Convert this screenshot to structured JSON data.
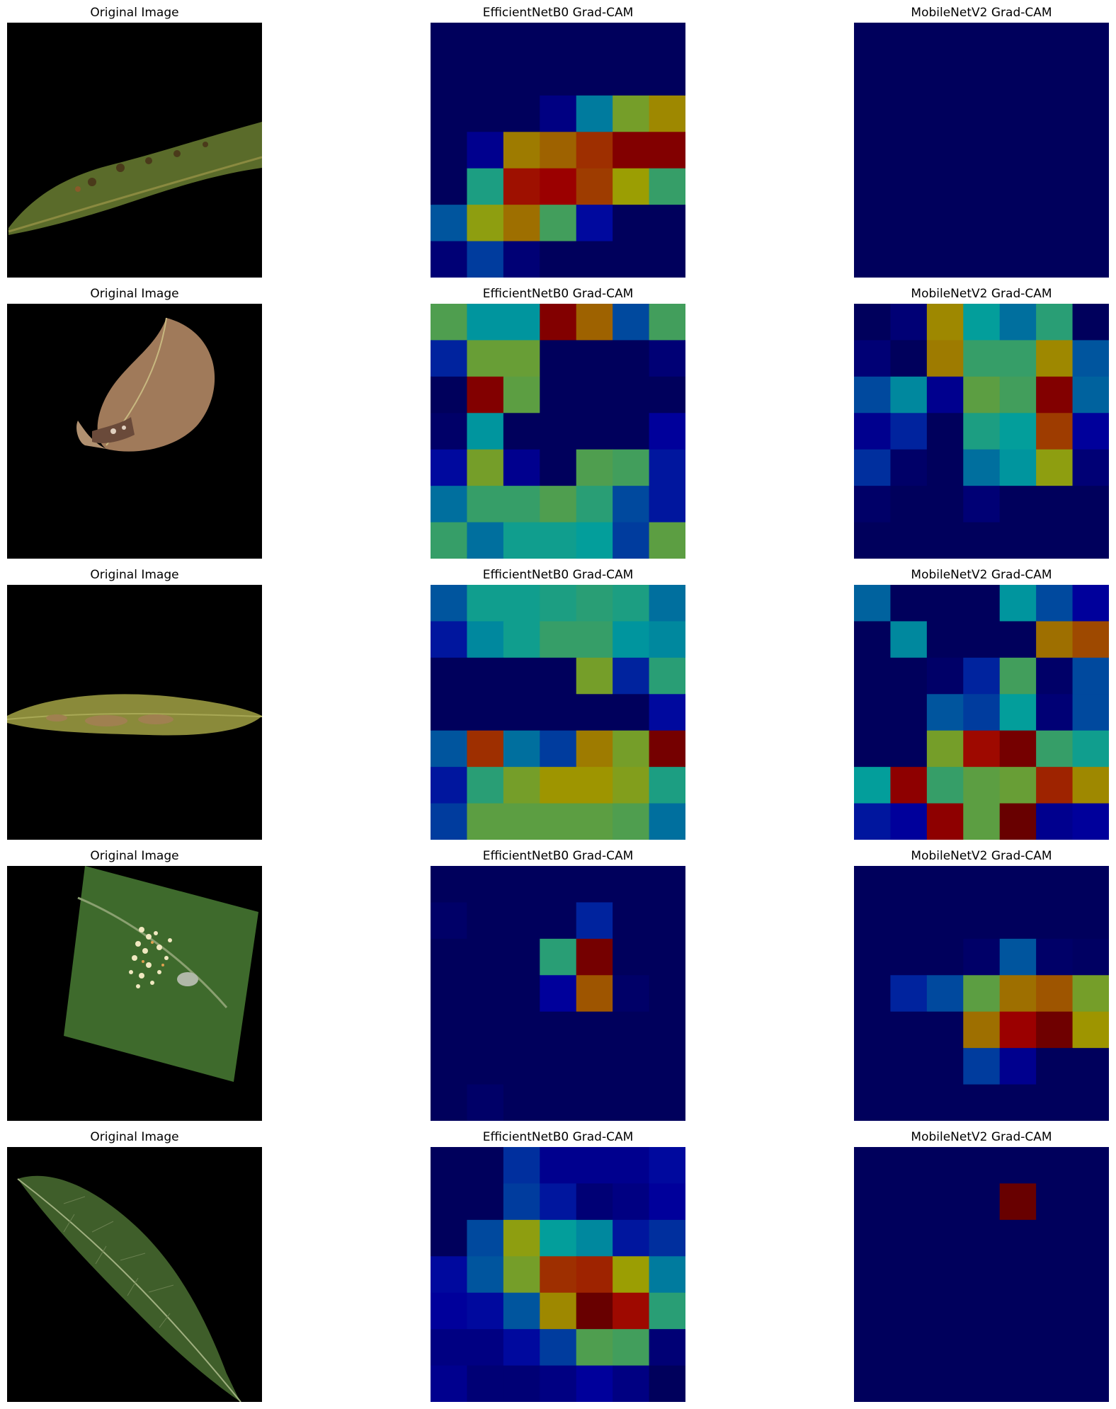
{
  "figure": {
    "rows": [
      {
        "original_title": "Original Image",
        "effnet_title": "EfficientNetB0 Grad-CAM",
        "mobilenet_title": "MobileNetV2 Grad-CAM",
        "effnet_grid": [
          [
            0.02,
            0.02,
            0.02,
            0.02,
            0.02,
            0.02,
            0.02
          ],
          [
            0.02,
            0.02,
            0.02,
            0.02,
            0.02,
            0.02,
            0.02
          ],
          [
            0.02,
            0.02,
            0.02,
            0.08,
            0.32,
            0.56,
            0.66
          ],
          [
            0.02,
            0.1,
            0.68,
            0.72,
            0.8,
            0.92,
            0.92
          ],
          [
            0.02,
            0.42,
            0.85,
            0.88,
            0.78,
            0.62,
            0.46
          ],
          [
            0.26,
            0.6,
            0.7,
            0.48,
            0.14,
            0.02,
            0.02
          ],
          [
            0.06,
            0.22,
            0.06,
            0.02,
            0.02,
            0.02,
            0.02
          ]
        ],
        "mobilenet_grid": [
          [
            0.02,
            0.02,
            0.02,
            0.02,
            0.02,
            0.02,
            0.02
          ],
          [
            0.02,
            0.02,
            0.02,
            0.02,
            0.02,
            0.02,
            0.02
          ],
          [
            0.02,
            0.02,
            0.02,
            0.02,
            0.02,
            0.02,
            0.02
          ],
          [
            0.02,
            0.02,
            0.02,
            0.02,
            0.02,
            0.02,
            0.02
          ],
          [
            0.02,
            0.02,
            0.02,
            0.02,
            0.02,
            0.02,
            0.02
          ],
          [
            0.02,
            0.02,
            0.02,
            0.02,
            0.02,
            0.02,
            0.02
          ],
          [
            0.02,
            0.02,
            0.02,
            0.02,
            0.02,
            0.02,
            0.02
          ]
        ]
      },
      {
        "original_title": "Original Image",
        "effnet_title": "EfficientNetB0 Grad-CAM",
        "mobilenet_title": "MobileNetV2 Grad-CAM",
        "effnet_grid": [
          [
            0.5,
            0.36,
            0.36,
            0.92,
            0.72,
            0.24,
            0.48
          ],
          [
            0.18,
            0.54,
            0.54,
            0.02,
            0.02,
            0.02,
            0.06
          ],
          [
            0.02,
            0.92,
            0.52,
            0.02,
            0.02,
            0.02,
            0.02
          ],
          [
            0.04,
            0.36,
            0.02,
            0.02,
            0.02,
            0.02,
            0.12
          ],
          [
            0.14,
            0.56,
            0.1,
            0.02,
            0.5,
            0.48,
            0.16
          ],
          [
            0.3,
            0.46,
            0.46,
            0.5,
            0.44,
            0.24,
            0.16
          ],
          [
            0.46,
            0.3,
            0.4,
            0.4,
            0.38,
            0.22,
            0.52
          ]
        ],
        "mobilenet_grid": [
          [
            0.02,
            0.06,
            0.66,
            0.38,
            0.3,
            0.44,
            0.02
          ],
          [
            0.06,
            0.02,
            0.68,
            0.46,
            0.46,
            0.66,
            0.26
          ],
          [
            0.24,
            0.34,
            0.1,
            0.52,
            0.48,
            0.92,
            0.28
          ],
          [
            0.1,
            0.18,
            0.02,
            0.42,
            0.38,
            0.78,
            0.12
          ],
          [
            0.2,
            0.04,
            0.02,
            0.3,
            0.36,
            0.6,
            0.06
          ],
          [
            0.04,
            0.02,
            0.02,
            0.06,
            0.02,
            0.02,
            0.02
          ],
          [
            0.02,
            0.02,
            0.02,
            0.02,
            0.02,
            0.02,
            0.02
          ]
        ]
      },
      {
        "original_title": "Original Image",
        "effnet_title": "EfficientNetB0 Grad-CAM",
        "mobilenet_title": "MobileNetV2 Grad-CAM",
        "effnet_grid": [
          [
            0.26,
            0.4,
            0.4,
            0.42,
            0.44,
            0.42,
            0.3
          ],
          [
            0.16,
            0.34,
            0.4,
            0.46,
            0.46,
            0.36,
            0.34
          ],
          [
            0.02,
            0.02,
            0.02,
            0.02,
            0.56,
            0.18,
            0.44
          ],
          [
            0.02,
            0.02,
            0.02,
            0.02,
            0.02,
            0.02,
            0.14
          ],
          [
            0.26,
            0.8,
            0.3,
            0.22,
            0.68,
            0.56,
            0.94
          ],
          [
            0.16,
            0.44,
            0.56,
            0.64,
            0.64,
            0.58,
            0.42
          ],
          [
            0.22,
            0.52,
            0.52,
            0.52,
            0.52,
            0.5,
            0.3
          ]
        ],
        "mobilenet_grid": [
          [
            0.28,
            0.02,
            0.02,
            0.02,
            0.36,
            0.24,
            0.12
          ],
          [
            0.02,
            0.34,
            0.02,
            0.02,
            0.02,
            0.7,
            0.76
          ],
          [
            0.02,
            0.02,
            0.04,
            0.18,
            0.48,
            0.04,
            0.24
          ],
          [
            0.02,
            0.02,
            0.26,
            0.22,
            0.38,
            0.06,
            0.24
          ],
          [
            0.02,
            0.02,
            0.56,
            0.86,
            0.94,
            0.46,
            0.4
          ],
          [
            0.38,
            0.9,
            0.46,
            0.52,
            0.54,
            0.82,
            0.66
          ],
          [
            0.16,
            0.12,
            0.9,
            0.52,
            0.96,
            0.1,
            0.12
          ]
        ]
      },
      {
        "original_title": "Original Image",
        "effnet_title": "EfficientNetB0 Grad-CAM",
        "mobilenet_title": "MobileNetV2 Grad-CAM",
        "effnet_grid": [
          [
            0.02,
            0.02,
            0.02,
            0.02,
            0.02,
            0.02,
            0.02
          ],
          [
            0.04,
            0.02,
            0.02,
            0.02,
            0.18,
            0.02,
            0.02
          ],
          [
            0.02,
            0.02,
            0.02,
            0.44,
            0.94,
            0.02,
            0.02
          ],
          [
            0.02,
            0.02,
            0.02,
            0.12,
            0.74,
            0.04,
            0.02
          ],
          [
            0.02,
            0.02,
            0.02,
            0.02,
            0.02,
            0.02,
            0.02
          ],
          [
            0.02,
            0.02,
            0.02,
            0.02,
            0.02,
            0.02,
            0.02
          ],
          [
            0.02,
            0.04,
            0.02,
            0.02,
            0.02,
            0.02,
            0.02
          ]
        ],
        "mobilenet_grid": [
          [
            0.02,
            0.02,
            0.02,
            0.02,
            0.02,
            0.02,
            0.02
          ],
          [
            0.02,
            0.02,
            0.02,
            0.02,
            0.02,
            0.02,
            0.02
          ],
          [
            0.02,
            0.02,
            0.02,
            0.04,
            0.26,
            0.04,
            0.03
          ],
          [
            0.02,
            0.18,
            0.24,
            0.52,
            0.7,
            0.74,
            0.56
          ],
          [
            0.02,
            0.02,
            0.02,
            0.7,
            0.88,
            0.95,
            0.64
          ],
          [
            0.02,
            0.02,
            0.02,
            0.22,
            0.1,
            0.02,
            0.02
          ],
          [
            0.02,
            0.02,
            0.02,
            0.02,
            0.02,
            0.02,
            0.02
          ]
        ]
      },
      {
        "original_title": "Original Image",
        "effnet_title": "EfficientNetB0 Grad-CAM",
        "mobilenet_title": "MobileNetV2 Grad-CAM",
        "effnet_grid": [
          [
            0.02,
            0.02,
            0.2,
            0.1,
            0.1,
            0.1,
            0.14
          ],
          [
            0.02,
            0.02,
            0.22,
            0.16,
            0.06,
            0.08,
            0.12
          ],
          [
            0.02,
            0.24,
            0.6,
            0.38,
            0.34,
            0.16,
            0.2
          ],
          [
            0.14,
            0.26,
            0.56,
            0.8,
            0.82,
            0.62,
            0.32
          ],
          [
            0.12,
            0.14,
            0.26,
            0.66,
            0.96,
            0.86,
            0.44
          ],
          [
            0.08,
            0.08,
            0.14,
            0.22,
            0.5,
            0.48,
            0.06
          ],
          [
            0.1,
            0.06,
            0.06,
            0.08,
            0.12,
            0.08,
            0.02
          ]
        ],
        "mobilenet_grid": [
          [
            0.02,
            0.02,
            0.02,
            0.02,
            0.02,
            0.02,
            0.02
          ],
          [
            0.02,
            0.02,
            0.02,
            0.02,
            0.96,
            0.02,
            0.02
          ],
          [
            0.02,
            0.02,
            0.02,
            0.02,
            0.02,
            0.02,
            0.02
          ],
          [
            0.02,
            0.02,
            0.02,
            0.02,
            0.02,
            0.02,
            0.02
          ],
          [
            0.02,
            0.02,
            0.02,
            0.02,
            0.02,
            0.02,
            0.02
          ],
          [
            0.02,
            0.02,
            0.02,
            0.02,
            0.02,
            0.02,
            0.02
          ],
          [
            0.02,
            0.02,
            0.02,
            0.02,
            0.02,
            0.02,
            0.02
          ]
        ]
      }
    ]
  }
}
